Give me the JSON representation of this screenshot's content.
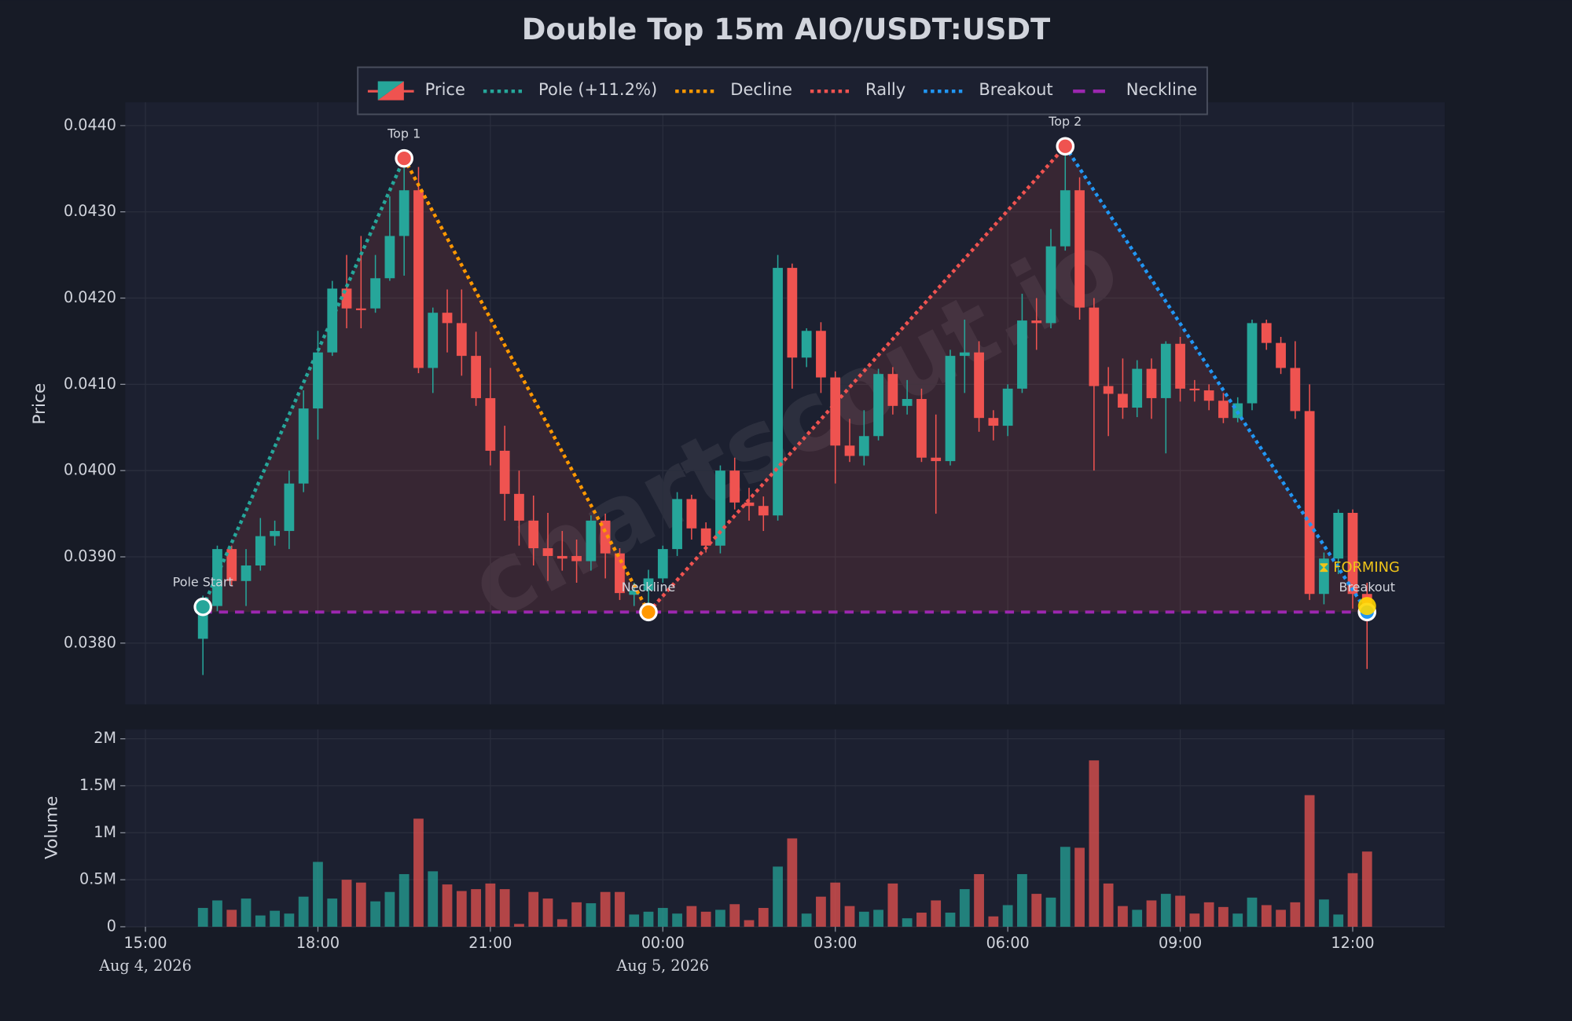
{
  "chart_data": {
    "type": "candlestick",
    "title": "Double Top 15m AIO/USDT:USDT",
    "ylabel": "Price",
    "volume_label": "Volume",
    "watermark": "chartscout.io",
    "legend": "upper center",
    "grid": true,
    "up_color": "#26a69a",
    "down_color": "#ef5350",
    "price_name": "Price",
    "xlim": [
      "2026-08-04 14:39",
      "2026-08-05 13:36"
    ],
    "xticks": [
      {
        "value": "2026-08-04 15:00",
        "label": "15:00"
      },
      {
        "value": "2026-08-04 18:00",
        "label": "18:00"
      },
      {
        "value": "2026-08-04 21:00",
        "label": "21:00"
      },
      {
        "value": "2026-08-05 00:00",
        "label": "00:00"
      },
      {
        "value": "2026-08-05 03:00",
        "label": "03:00"
      },
      {
        "value": "2026-08-05 06:00",
        "label": "06:00"
      },
      {
        "value": "2026-08-05 09:00",
        "label": "09:00"
      },
      {
        "value": "2026-08-05 12:00",
        "label": "12:00"
      }
    ],
    "xtick_dates": [
      {
        "value": "2026-08-04 15:00",
        "label": "Aug 4, 2026"
      },
      {
        "value": "2026-08-05 00:00",
        "label": "Aug 5, 2026"
      }
    ],
    "ylim": [
      0.03729,
      0.04427
    ],
    "yticks": [
      {
        "value": 0.038,
        "label": "0.0380"
      },
      {
        "value": 0.039,
        "label": "0.0390"
      },
      {
        "value": 0.04,
        "label": "0.0400"
      },
      {
        "value": 0.041,
        "label": "0.0410"
      },
      {
        "value": 0.042,
        "label": "0.0420"
      },
      {
        "value": 0.043,
        "label": "0.0430"
      },
      {
        "value": 0.044,
        "label": "0.0440"
      }
    ],
    "volume_ylim": [
      0,
      2100000
    ],
    "volume_yticks": [
      0,
      {
        "value": 500000,
        "label": "0.5M"
      },
      {
        "value": 1000000,
        "label": "1M"
      },
      {
        "value": 1500000,
        "label": "1.5M"
      },
      {
        "value": 2000000,
        "label": "2M"
      }
    ],
    "x": [
      "2026-08-04 16:00",
      "2026-08-04 16:15",
      "2026-08-04 16:30",
      "2026-08-04 16:45",
      "2026-08-04 17:00",
      "2026-08-04 17:15",
      "2026-08-04 17:30",
      "2026-08-04 17:45",
      "2026-08-04 18:00",
      "2026-08-04 18:15",
      "2026-08-04 18:30",
      "2026-08-04 18:45",
      "2026-08-04 19:00",
      "2026-08-04 19:15",
      "2026-08-04 19:30",
      "2026-08-04 19:45",
      "2026-08-04 20:00",
      "2026-08-04 20:15",
      "2026-08-04 20:30",
      "2026-08-04 20:45",
      "2026-08-04 21:00",
      "2026-08-04 21:15",
      "2026-08-04 21:30",
      "2026-08-04 21:45",
      "2026-08-04 22:00",
      "2026-08-04 22:15",
      "2026-08-04 22:30",
      "2026-08-04 22:45",
      "2026-08-04 23:00",
      "2026-08-04 23:15",
      "2026-08-04 23:30",
      "2026-08-04 23:45",
      "2026-08-05 00:00",
      "2026-08-05 00:15",
      "2026-08-05 00:30",
      "2026-08-05 00:45",
      "2026-08-05 01:00",
      "2026-08-05 01:15",
      "2026-08-05 01:30",
      "2026-08-05 01:45",
      "2026-08-05 02:00",
      "2026-08-05 02:15",
      "2026-08-05 02:30",
      "2026-08-05 02:45",
      "2026-08-05 03:00",
      "2026-08-05 03:15",
      "2026-08-05 03:30",
      "2026-08-05 03:45",
      "2026-08-05 04:00",
      "2026-08-05 04:15",
      "2026-08-05 04:30",
      "2026-08-05 04:45",
      "2026-08-05 05:00",
      "2026-08-05 05:15",
      "2026-08-05 05:30",
      "2026-08-05 05:45",
      "2026-08-05 06:00",
      "2026-08-05 06:15",
      "2026-08-05 06:30",
      "2026-08-05 06:45",
      "2026-08-05 07:00",
      "2026-08-05 07:15",
      "2026-08-05 07:30",
      "2026-08-05 07:45",
      "2026-08-05 08:00",
      "2026-08-05 08:15",
      "2026-08-05 08:30",
      "2026-08-05 08:45",
      "2026-08-05 09:00",
      "2026-08-05 09:15",
      "2026-08-05 09:30",
      "2026-08-05 09:45",
      "2026-08-05 10:00",
      "2026-08-05 10:15",
      "2026-08-05 10:30",
      "2026-08-05 10:45",
      "2026-08-05 11:00",
      "2026-08-05 11:15",
      "2026-08-05 11:30",
      "2026-08-05 11:45",
      "2026-08-05 12:00",
      "2026-08-05 12:15"
    ],
    "open": [
      0.03805,
      0.03843,
      0.03909,
      0.03872,
      0.0389,
      0.03924,
      0.0393,
      0.03985,
      0.04072,
      0.04137,
      0.04211,
      0.04188,
      0.04188,
      0.04223,
      0.04272,
      0.04325,
      0.04119,
      0.04183,
      0.04171,
      0.04133,
      0.04084,
      0.04023,
      0.03973,
      0.03942,
      0.0391,
      0.03901,
      0.03901,
      0.03895,
      0.03942,
      0.03904,
      0.03856,
      0.03861,
      0.03875,
      0.03909,
      0.03967,
      0.03933,
      0.03913,
      0.04,
      0.03963,
      0.03959,
      0.03948,
      0.04235,
      0.04131,
      0.04162,
      0.04108,
      0.04029,
      0.04017,
      0.0404,
      0.04112,
      0.04075,
      0.04083,
      0.04015,
      0.04011,
      0.04133,
      0.04137,
      0.04061,
      0.04052,
      0.04095,
      0.04174,
      0.04171,
      0.0426,
      0.04325,
      0.04189,
      0.04098,
      0.04089,
      0.04073,
      0.04118,
      0.04084,
      0.04147,
      0.04095,
      0.04093,
      0.04081,
      0.04061,
      0.04078,
      0.04171,
      0.04148,
      0.04119,
      0.04069,
      0.03857,
      0.03898,
      0.03951,
      0.03857
    ],
    "high": [
      0.03855,
      0.03913,
      0.03913,
      0.03909,
      0.03945,
      0.03942,
      0.04,
      0.04093,
      0.04162,
      0.0422,
      0.0425,
      0.04272,
      0.0425,
      0.04318,
      0.04362,
      0.04352,
      0.04189,
      0.0421,
      0.0421,
      0.04161,
      0.04119,
      0.04052,
      0.04,
      0.03971,
      0.03951,
      0.0393,
      0.0392,
      0.03948,
      0.0395,
      0.0391,
      0.0387,
      0.03885,
      0.03913,
      0.03975,
      0.03972,
      0.0394,
      0.04006,
      0.04015,
      0.0398,
      0.0397,
      0.0425,
      0.0424,
      0.04165,
      0.04172,
      0.04115,
      0.0406,
      0.0407,
      0.04118,
      0.0412,
      0.04105,
      0.04095,
      0.04065,
      0.0414,
      0.04175,
      0.0415,
      0.0407,
      0.041,
      0.04205,
      0.042,
      0.0428,
      0.04378,
      0.0434,
      0.042,
      0.0412,
      0.0413,
      0.04128,
      0.0413,
      0.0415,
      0.04155,
      0.04105,
      0.041,
      0.0409,
      0.04085,
      0.04175,
      0.04175,
      0.04155,
      0.0415,
      0.041,
      0.03905,
      0.03955,
      0.03955,
      0.0387
    ],
    "low": [
      0.03763,
      0.03837,
      0.03866,
      0.03843,
      0.03884,
      0.03913,
      0.03909,
      0.03975,
      0.04036,
      0.04133,
      0.04165,
      0.04165,
      0.04183,
      0.0422,
      0.04226,
      0.04113,
      0.0409,
      0.04137,
      0.0411,
      0.04075,
      0.04006,
      0.03942,
      0.03913,
      0.0389,
      0.03872,
      0.03884,
      0.0387,
      0.03884,
      0.03875,
      0.0385,
      0.03843,
      0.03837,
      0.0387,
      0.03901,
      0.0392,
      0.03905,
      0.03904,
      0.03955,
      0.03942,
      0.0393,
      0.03942,
      0.04095,
      0.0412,
      0.0409,
      0.03985,
      0.0401,
      0.04006,
      0.04035,
      0.04065,
      0.04065,
      0.0401,
      0.0395,
      0.04006,
      0.0409,
      0.04045,
      0.04035,
      0.0404,
      0.0409,
      0.0414,
      0.04165,
      0.04255,
      0.04175,
      0.04,
      0.0404,
      0.0406,
      0.04062,
      0.0406,
      0.0402,
      0.0408,
      0.0408,
      0.0407,
      0.04055,
      0.04056,
      0.0407,
      0.0414,
      0.04112,
      0.0406,
      0.0385,
      0.03845,
      0.0388,
      0.0384,
      0.0377
    ],
    "close": [
      0.03849,
      0.03909,
      0.03872,
      0.0389,
      0.03924,
      0.0393,
      0.03985,
      0.04072,
      0.04137,
      0.04211,
      0.04188,
      0.04186,
      0.04223,
      0.04272,
      0.04325,
      0.04119,
      0.04183,
      0.04171,
      0.04133,
      0.04084,
      0.04023,
      0.03973,
      0.03942,
      0.0391,
      0.03901,
      0.03898,
      0.03895,
      0.03942,
      0.03904,
      0.03858,
      0.03861,
      0.03875,
      0.03909,
      0.03967,
      0.03933,
      0.03913,
      0.04,
      0.03963,
      0.03959,
      0.03948,
      0.04235,
      0.04131,
      0.04162,
      0.04108,
      0.04029,
      0.04017,
      0.0404,
      0.04112,
      0.04075,
      0.04083,
      0.04015,
      0.04011,
      0.04133,
      0.04137,
      0.04061,
      0.04052,
      0.04095,
      0.04174,
      0.04171,
      0.0426,
      0.04325,
      0.04189,
      0.04098,
      0.04089,
      0.04073,
      0.04118,
      0.04084,
      0.04147,
      0.04095,
      0.04093,
      0.04081,
      0.04061,
      0.04078,
      0.04171,
      0.04148,
      0.04119,
      0.04069,
      0.03857,
      0.03898,
      0.03951,
      0.03857,
      0.03843
    ],
    "volume": [
      200000,
      280000,
      180000,
      300000,
      120000,
      170000,
      140000,
      320000,
      690000,
      300000,
      500000,
      470000,
      270000,
      370000,
      560000,
      1150000,
      590000,
      450000,
      380000,
      400000,
      460000,
      400000,
      30000,
      370000,
      300000,
      80000,
      260000,
      250000,
      370000,
      370000,
      130000,
      160000,
      200000,
      140000,
      220000,
      160000,
      180000,
      240000,
      70000,
      200000,
      640000,
      940000,
      140000,
      320000,
      470000,
      220000,
      160000,
      180000,
      460000,
      90000,
      150000,
      280000,
      150000,
      400000,
      560000,
      110000,
      230000,
      560000,
      350000,
      310000,
      850000,
      840000,
      1770000,
      460000,
      220000,
      180000,
      280000,
      350000,
      330000,
      140000,
      260000,
      210000,
      140000,
      310000,
      230000,
      180000,
      260000,
      1400000,
      290000,
      130000,
      570000,
      800000
    ],
    "series": [
      {
        "name": "Pole (+11.2%)",
        "color": "#26a69a"
      },
      {
        "name": "Decline",
        "color": "#ff9800"
      },
      {
        "name": "Rally",
        "color": "#ef5350"
      },
      {
        "name": "Breakout",
        "color": "#2196f3"
      }
    ],
    "neckline": {
      "name": "Neckline",
      "value": 0.03836,
      "color": "#9c27b0"
    },
    "points": [
      {
        "label": "Pole Start",
        "x": "2026-08-04 16:00",
        "y": 0.03842,
        "color": "#26a69a"
      },
      {
        "label": "Top 1",
        "x": "2026-08-04 19:30",
        "y": 0.04362,
        "color": "#ef5350"
      },
      {
        "label": "Neckline",
        "x": "2026-08-04 23:45",
        "y": 0.03836,
        "color": "#ff9800"
      },
      {
        "label": "Top 2",
        "x": "2026-08-05 07:00",
        "y": 0.04376,
        "color": "#ef5350"
      },
      {
        "label": "Breakout",
        "x": "2026-08-05 12:15",
        "y": 0.03836,
        "color": "#2196f3"
      }
    ],
    "status": {
      "text": "⧗ FORMING",
      "color": "#f0c419"
    }
  }
}
